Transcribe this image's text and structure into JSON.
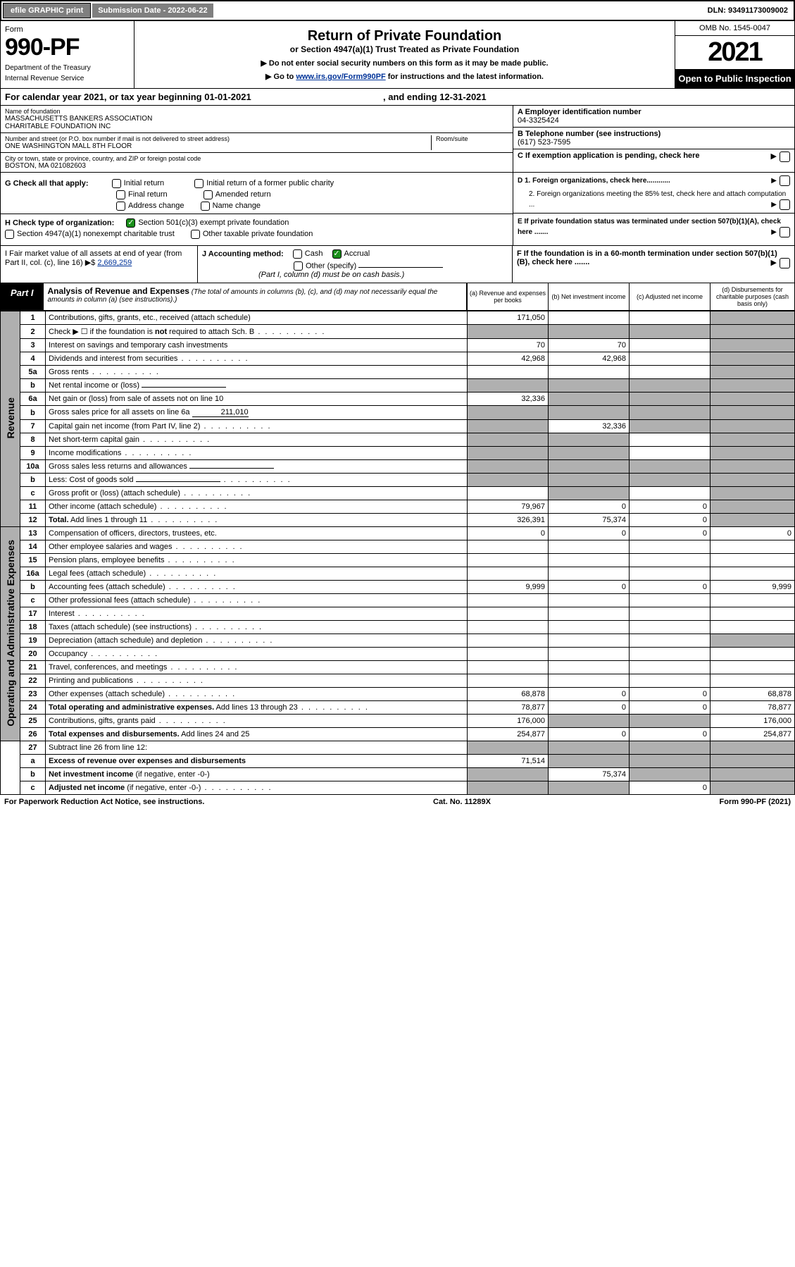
{
  "topbar": {
    "efile": "efile GRAPHIC print",
    "subdate_label": "Submission Date - 2022-06-22",
    "dln": "DLN: 93491173009002"
  },
  "header": {
    "form_label": "Form",
    "form_no": "990-PF",
    "dept": "Department of the Treasury",
    "irs": "Internal Revenue Service",
    "title": "Return of Private Foundation",
    "subtitle": "or Section 4947(a)(1) Trust Treated as Private Foundation",
    "note1": "▶ Do not enter social security numbers on this form as it may be made public.",
    "note2_pre": "▶ Go to ",
    "note2_link": "www.irs.gov/Form990PF",
    "note2_post": " for instructions and the latest information.",
    "omb": "OMB No. 1545-0047",
    "year": "2021",
    "open": "Open to Public Inspection"
  },
  "caly": {
    "pre": "For calendar year 2021, or tax year beginning 01-01-2021",
    "mid": ", and ending 12-31-2021"
  },
  "info": {
    "name_lbl": "Name of foundation",
    "name1": "MASSACHUSETTS BANKERS ASSOCIATION",
    "name2": "CHARITABLE FOUNDATION INC",
    "addr_lbl": "Number and street (or P.O. box number if mail is not delivered to street address)",
    "addr": "ONE WASHINGTON MALL 8TH FLOOR",
    "room_lbl": "Room/suite",
    "city_lbl": "City or town, state or province, country, and ZIP or foreign postal code",
    "city": "BOSTON, MA  021082603",
    "a_lbl": "A Employer identification number",
    "a_val": "04-3325424",
    "b_lbl": "B Telephone number (see instructions)",
    "b_val": "(617) 523-7595",
    "c_lbl": "C If exemption application is pending, check here",
    "d1": "D 1. Foreign organizations, check here............",
    "d2": "2. Foreign organizations meeting the 85% test, check here and attach computation ...",
    "e": "E  If private foundation status was terminated under section 507(b)(1)(A), check here .......",
    "f": "F  If the foundation is in a 60-month termination under section 507(b)(1)(B), check here ......."
  },
  "g": {
    "label": "G Check all that apply:",
    "opts": [
      "Initial return",
      "Final return",
      "Address change",
      "Initial return of a former public charity",
      "Amended return",
      "Name change"
    ]
  },
  "h": {
    "label": "H Check type of organization:",
    "o1": "Section 501(c)(3) exempt private foundation",
    "o2": "Section 4947(a)(1) nonexempt charitable trust",
    "o3": "Other taxable private foundation"
  },
  "i": {
    "l1": "I Fair market value of all assets at end of year (from Part II, col. (c), line 16)",
    "arrow": "▶$",
    "val": "2,669,259"
  },
  "j": {
    "label": "J Accounting method:",
    "cash": "Cash",
    "accrual": "Accrual",
    "other": "Other (specify)",
    "note": "(Part I, column (d) must be on cash basis.)"
  },
  "part1": {
    "label": "Part I",
    "title": "Analysis of Revenue and Expenses",
    "note": "(The total of amounts in columns (b), (c), and (d) may not necessarily equal the amounts in column (a) (see instructions).)",
    "col_a": "(a)  Revenue and expenses per books",
    "col_b": "(b)  Net investment income",
    "col_c": "(c)  Adjusted net income",
    "col_d": "(d)  Disbursements for charitable purposes (cash basis only)"
  },
  "side": {
    "rev": "Revenue",
    "exp": "Operating and Administrative Expenses"
  },
  "rows": [
    {
      "n": "1",
      "d": "Contributions, gifts, grants, etc., received (attach schedule)",
      "a": "171,050",
      "b": "",
      "c": "",
      "dg": true,
      "cg": false,
      "bg": false
    },
    {
      "n": "2",
      "d": "Check ▶ ☐ if the foundation is <b>not</b> required to attach Sch. B",
      "dots": true,
      "a": "g",
      "b": "g",
      "c": "g",
      "dcol": "g"
    },
    {
      "n": "3",
      "d": "Interest on savings and temporary cash investments",
      "a": "70",
      "b": "70",
      "c": "",
      "dg": true
    },
    {
      "n": "4",
      "d": "Dividends and interest from securities",
      "dots": true,
      "a": "42,968",
      "b": "42,968",
      "c": "",
      "dg": true
    },
    {
      "n": "5a",
      "d": "Gross rents",
      "dots": true,
      "a": "",
      "b": "",
      "c": "",
      "dg": true
    },
    {
      "n": "b",
      "d": "Net rental income or (loss)",
      "inset": true,
      "a": "g",
      "b": "g",
      "c": "g",
      "dcol": "g"
    },
    {
      "n": "6a",
      "d": "Net gain or (loss) from sale of assets not on line 10",
      "a": "32,336",
      "b": "g",
      "c": "g",
      "dg": true
    },
    {
      "n": "b",
      "d": "Gross sales price for all assets on line 6a",
      "inset": true,
      "insetval": "211,010",
      "a": "g",
      "b": "g",
      "c": "g",
      "dcol": "g"
    },
    {
      "n": "7",
      "d": "Capital gain net income (from Part IV, line 2)",
      "dots": true,
      "a": "g",
      "b": "32,336",
      "c": "g",
      "dg": true
    },
    {
      "n": "8",
      "d": "Net short-term capital gain",
      "dots": true,
      "a": "g",
      "b": "g",
      "c": "",
      "dg": true
    },
    {
      "n": "9",
      "d": "Income modifications",
      "dots": true,
      "a": "g",
      "b": "g",
      "c": "",
      "dg": true
    },
    {
      "n": "10a",
      "d": "Gross sales less returns and allowances",
      "inset": true,
      "a": "g",
      "b": "g",
      "c": "g",
      "dcol": "g"
    },
    {
      "n": "b",
      "d": "Less: Cost of goods sold",
      "dots": true,
      "inset": true,
      "a": "g",
      "b": "g",
      "c": "g",
      "dcol": "g"
    },
    {
      "n": "c",
      "d": "Gross profit or (loss) (attach schedule)",
      "dots": true,
      "a": "",
      "b": "g",
      "c": "",
      "dg": true
    },
    {
      "n": "11",
      "d": "Other income (attach schedule)",
      "dots": true,
      "a": "79,967",
      "b": "0",
      "c": "0",
      "dg": true
    },
    {
      "n": "12",
      "d": "<b>Total.</b> Add lines 1 through 11",
      "dots": true,
      "a": "326,391",
      "b": "75,374",
      "c": "0",
      "dg": true
    }
  ],
  "exprows": [
    {
      "n": "13",
      "d": "Compensation of officers, directors, trustees, etc.",
      "a": "0",
      "b": "0",
      "c": "0",
      "dcol": "0"
    },
    {
      "n": "14",
      "d": "Other employee salaries and wages",
      "dots": true,
      "a": "",
      "b": "",
      "c": "",
      "dcol": ""
    },
    {
      "n": "15",
      "d": "Pension plans, employee benefits",
      "dots": true,
      "a": "",
      "b": "",
      "c": "",
      "dcol": ""
    },
    {
      "n": "16a",
      "d": "Legal fees (attach schedule)",
      "dots": true,
      "a": "",
      "b": "",
      "c": "",
      "dcol": ""
    },
    {
      "n": "b",
      "d": "Accounting fees (attach schedule)",
      "dots": true,
      "a": "9,999",
      "b": "0",
      "c": "0",
      "dcol": "9,999"
    },
    {
      "n": "c",
      "d": "Other professional fees (attach schedule)",
      "dots": true,
      "a": "",
      "b": "",
      "c": "",
      "dcol": ""
    },
    {
      "n": "17",
      "d": "Interest",
      "dots": true,
      "a": "",
      "b": "",
      "c": "",
      "dcol": ""
    },
    {
      "n": "18",
      "d": "Taxes (attach schedule) (see instructions)",
      "dots": true,
      "a": "",
      "b": "",
      "c": "",
      "dcol": ""
    },
    {
      "n": "19",
      "d": "Depreciation (attach schedule) and depletion",
      "dots": true,
      "a": "",
      "b": "",
      "c": "",
      "dg": true
    },
    {
      "n": "20",
      "d": "Occupancy",
      "dots": true,
      "a": "",
      "b": "",
      "c": "",
      "dcol": ""
    },
    {
      "n": "21",
      "d": "Travel, conferences, and meetings",
      "dots": true,
      "a": "",
      "b": "",
      "c": "",
      "dcol": ""
    },
    {
      "n": "22",
      "d": "Printing and publications",
      "dots": true,
      "a": "",
      "b": "",
      "c": "",
      "dcol": ""
    },
    {
      "n": "23",
      "d": "Other expenses (attach schedule)",
      "dots": true,
      "a": "68,878",
      "b": "0",
      "c": "0",
      "dcol": "68,878"
    },
    {
      "n": "24",
      "d": "<b>Total operating and administrative expenses.</b> Add lines 13 through 23",
      "dots": true,
      "a": "78,877",
      "b": "0",
      "c": "0",
      "dcol": "78,877"
    },
    {
      "n": "25",
      "d": "Contributions, gifts, grants paid",
      "dots": true,
      "a": "176,000",
      "b": "g",
      "c": "g",
      "dcol": "176,000"
    },
    {
      "n": "26",
      "d": "<b>Total expenses and disbursements.</b> Add lines 24 and 25",
      "a": "254,877",
      "b": "0",
      "c": "0",
      "dcol": "254,877"
    }
  ],
  "bottomrows": [
    {
      "n": "27",
      "d": "Subtract line 26 from line 12:",
      "a": "g",
      "b": "g",
      "c": "g",
      "dcol": "g"
    },
    {
      "n": "a",
      "d": "<b>Excess of revenue over expenses and disbursements</b>",
      "a": "71,514",
      "b": "g",
      "c": "g",
      "dcol": "g"
    },
    {
      "n": "b",
      "d": "<b>Net investment income</b> (if negative, enter -0-)",
      "a": "g",
      "b": "75,374",
      "c": "g",
      "dcol": "g"
    },
    {
      "n": "c",
      "d": "<b>Adjusted net income</b> (if negative, enter -0-)",
      "dots": true,
      "a": "g",
      "b": "g",
      "c": "0",
      "dcol": "g"
    }
  ],
  "footer": {
    "l": "For Paperwork Reduction Act Notice, see instructions.",
    "m": "Cat. No. 11289X",
    "r": "Form 990-PF (2021)"
  }
}
